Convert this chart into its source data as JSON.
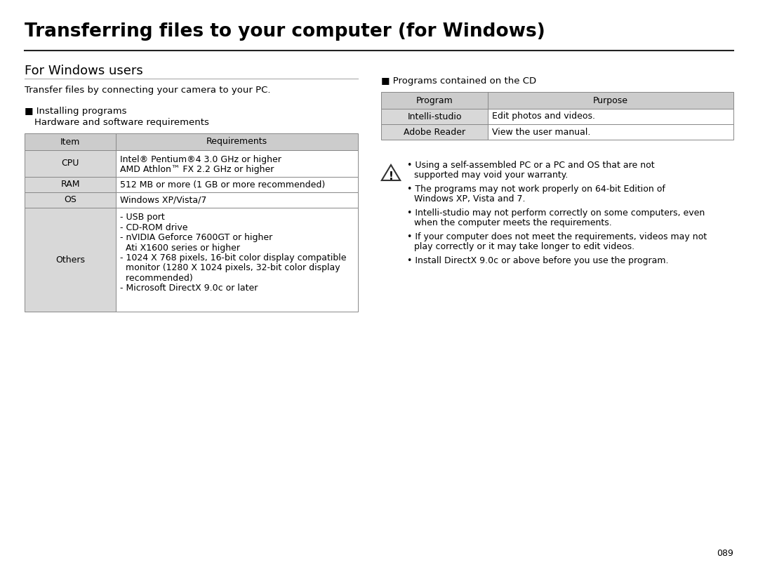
{
  "title": "Transferring files to your computer (for Windows)",
  "section1_title": "For Windows users",
  "intro_text": "Transfer files by connecting your camera to your PC.",
  "installing_header": "■ Installing programs",
  "installing_sub": "Hardware and software requirements",
  "table1_header": [
    "Item",
    "Requirements"
  ],
  "table1_rows": [
    [
      "CPU",
      "Intel® Pentium®4 3.0 GHz or higher\nAMD Athlon™ FX 2.2 GHz or higher"
    ],
    [
      "RAM",
      "512 MB or more (1 GB or more recommended)"
    ],
    [
      "OS",
      "Windows XP/Vista/7"
    ],
    [
      "Others",
      "- USB port\n- CD-ROM drive\n- nVIDIA Geforce 7600GT or higher\n  Ati X1600 series or higher\n- 1024 X 768 pixels, 16-bit color display compatible\n  monitor (1280 X 1024 pixels, 32-bit color display\n  recommended)\n- Microsoft DirectX 9.0c or later"
    ]
  ],
  "programs_header": "■ Programs contained on the CD",
  "table2_header": [
    "Program",
    "Purpose"
  ],
  "table2_rows": [
    [
      "Intelli-studio",
      "Edit photos and videos."
    ],
    [
      "Adobe Reader",
      "View the user manual."
    ]
  ],
  "notes": [
    "Using a self-assembled PC or a PC and OS that are not\nsupported may void your warranty.",
    "The programs may not work properly on 64-bit Edition of\nWindows XP, Vista and 7.",
    "Intelli-studio may not perform correctly on some computers, even\nwhen the computer meets the requirements.",
    "If your computer does not meet the requirements, videos may not\nplay correctly or it may take longer to edit videos.",
    "Install DirectX 9.0c or above before you use the program."
  ],
  "page_number": "089",
  "bg_color": "#ffffff",
  "header_bg": "#cccccc",
  "cell_bg": "#d8d8d8",
  "row_bg": "#ffffff",
  "text_color": "#000000",
  "table_border": "#888888"
}
